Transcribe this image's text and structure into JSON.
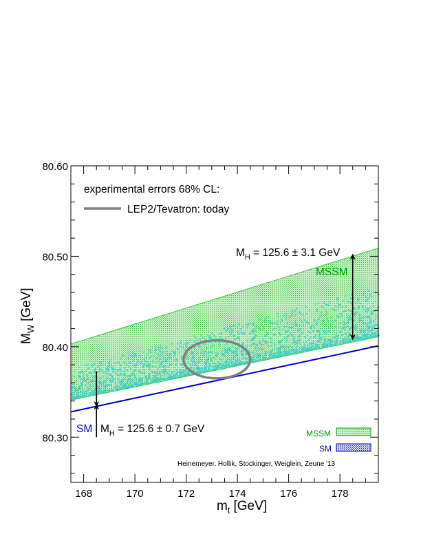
{
  "chart_data": {
    "type": "area",
    "xlabel": "m",
    "xlabel_sub": "t",
    "xlabel_unit": "[GeV]",
    "ylabel": "M",
    "ylabel_sub": "W",
    "ylabel_unit": "[GeV]",
    "xlim": [
      167.5,
      179.5
    ],
    "ylim": [
      80.25,
      80.6
    ],
    "x_ticks": [
      168,
      170,
      172,
      174,
      176,
      178
    ],
    "x_tick_labels": [
      "168",
      "170",
      "172",
      "174",
      "176",
      "178"
    ],
    "y_ticks": [
      80.3,
      80.4,
      80.5,
      80.6
    ],
    "y_tick_labels": [
      "80.30",
      "80.40",
      "80.50",
      "80.60"
    ],
    "grid": false,
    "series": [
      {
        "name": "MSSM",
        "kind": "band",
        "color": "#33cc33",
        "x": [
          167.5,
          179.5
        ],
        "upper": [
          80.403,
          80.509
        ],
        "lower": [
          80.341,
          80.411
        ]
      },
      {
        "name": "SM",
        "kind": "line",
        "color": "#0000cc",
        "x": [
          167.5,
          179.5
        ],
        "y": [
          80.328,
          80.401
        ]
      }
    ],
    "scatter_color": "#40d0c8",
    "ellipse": {
      "center": [
        173.2,
        80.386
      ],
      "half_width": 1.3,
      "half_height": 0.021,
      "color": "#808080"
    },
    "legend": {
      "heading": "experimental errors 68% CL:",
      "entry": "LEP2/Tevatron: today",
      "entry_color": "#808080"
    },
    "annotations": {
      "mssm_arrow": {
        "x": 178.5,
        "y_top": 80.503,
        "y_bottom": 80.407,
        "text_main": "M",
        "text_sub": "H",
        "text_rest": " = 125.6 ± 3.1 GeV",
        "label": "MSSM"
      },
      "sm_arrow": {
        "x": 168.5,
        "y_upper_start": 80.373,
        "y_upper_end": 80.333,
        "y_lower_start": 80.3,
        "y_lower_end": 80.337,
        "label": "SM",
        "text_main": "M",
        "text_sub": "H",
        "text_rest": " = 125.6 ± 0.7 GeV"
      }
    },
    "corner_legend": [
      {
        "label": "MSSM",
        "color": "#009900"
      },
      {
        "label": "SM",
        "color": "#0000cc"
      }
    ],
    "credit": "Heinemeyer, Hollik, Stockinger, Weiglein, Zeune '13"
  }
}
